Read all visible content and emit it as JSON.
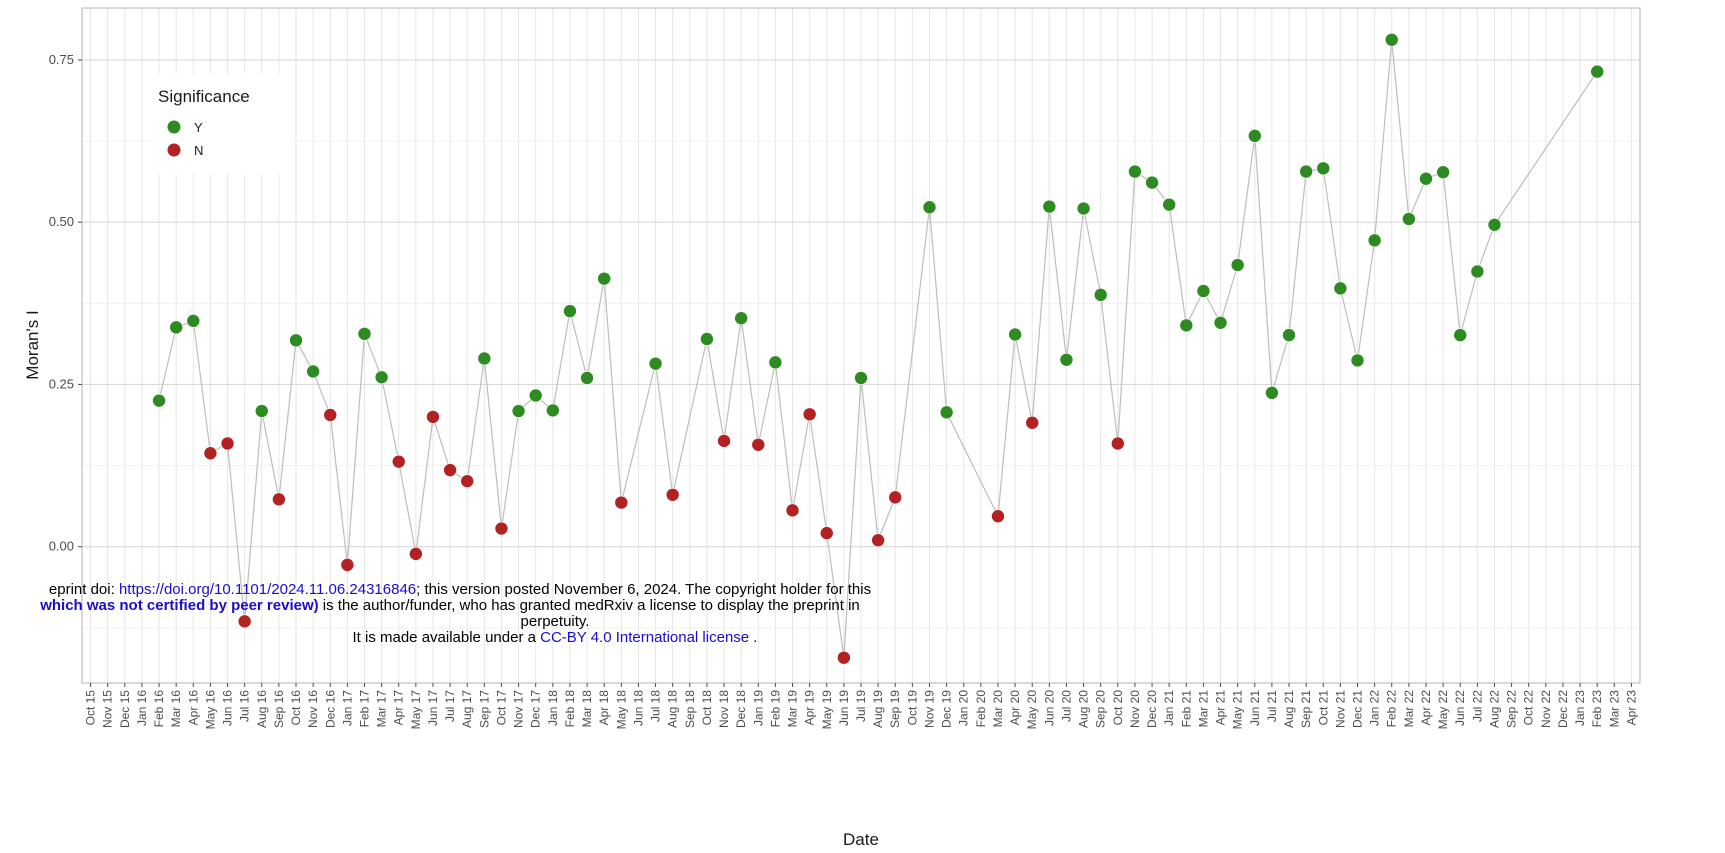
{
  "chart_data": {
    "type": "scatter",
    "title": "",
    "xlabel": "Date",
    "ylabel": "Moran's I",
    "ylim": [
      -0.21,
      0.83
    ],
    "y_ticks": [
      0.0,
      0.25,
      0.5,
      0.75
    ],
    "y_tick_labels": [
      "0.00",
      "0.25",
      "0.50",
      "0.75"
    ],
    "x_tick_labels": [
      "Oct 15",
      "Nov 15",
      "Dec 15",
      "Jan 16",
      "Feb 16",
      "Mar 16",
      "Apr 16",
      "May 16",
      "Jun 16",
      "Jul 16",
      "Aug 16",
      "Sep 16",
      "Oct 16",
      "Nov 16",
      "Dec 16",
      "Jan 17",
      "Feb 17",
      "Mar 17",
      "Apr 17",
      "May 17",
      "Jun 17",
      "Jul 17",
      "Aug 17",
      "Sep 17",
      "Oct 17",
      "Nov 17",
      "Dec 17",
      "Jan 18",
      "Feb 18",
      "Mar 18",
      "Apr 18",
      "May 18",
      "Jun 18",
      "Jul 18",
      "Aug 18",
      "Sep 18",
      "Oct 18",
      "Nov 18",
      "Dec 18",
      "Jan 19",
      "Feb 19",
      "Mar 19",
      "Apr 19",
      "May 19",
      "Jun 19",
      "Jul 19",
      "Aug 19",
      "Sep 19",
      "Oct 19",
      "Nov 19",
      "Dec 19",
      "Jan 20",
      "Feb 20",
      "Mar 20",
      "Apr 20",
      "May 20",
      "Jun 20",
      "Jul 20",
      "Aug 20",
      "Sep 20",
      "Oct 20",
      "Nov 20",
      "Dec 20",
      "Jan 21",
      "Feb 21",
      "Mar 21",
      "Apr 21",
      "May 21",
      "Jun 21",
      "Jul 21",
      "Aug 21",
      "Sep 21",
      "Oct 21",
      "Nov 21",
      "Dec 21",
      "Jan 22",
      "Feb 22",
      "Mar 22",
      "Apr 22",
      "May 22",
      "Jun 22",
      "Jul 22",
      "Aug 22",
      "Sep 22",
      "Oct 22",
      "Nov 22",
      "Dec 22",
      "Jan 23",
      "Feb 23",
      "Mar 23",
      "Apr 23"
    ],
    "grid": true,
    "legend": {
      "title": "Significance",
      "placement": "top-left",
      "entries": [
        {
          "label": "Y",
          "color": "#2e8b22"
        },
        {
          "label": "N",
          "color": "#b22222"
        }
      ]
    },
    "line_color": "#bdbdbd",
    "points": [
      {
        "x": "Feb 16",
        "y": 0.225,
        "sig": "Y"
      },
      {
        "x": "Mar 16",
        "y": 0.338,
        "sig": "Y"
      },
      {
        "x": "Apr 16",
        "y": 0.348,
        "sig": "Y"
      },
      {
        "x": "May 16",
        "y": 0.144,
        "sig": "N"
      },
      {
        "x": "Jun 16",
        "y": 0.159,
        "sig": "N"
      },
      {
        "x": "Jul 16",
        "y": -0.115,
        "sig": "N"
      },
      {
        "x": "Aug 16",
        "y": 0.209,
        "sig": "Y"
      },
      {
        "x": "Sep 16",
        "y": 0.073,
        "sig": "N"
      },
      {
        "x": "Oct 16",
        "y": 0.318,
        "sig": "Y"
      },
      {
        "x": "Nov 16",
        "y": 0.27,
        "sig": "Y"
      },
      {
        "x": "Dec 16",
        "y": 0.203,
        "sig": "N"
      },
      {
        "x": "Jan 17",
        "y": -0.028,
        "sig": "N"
      },
      {
        "x": "Feb 17",
        "y": 0.328,
        "sig": "Y"
      },
      {
        "x": "Mar 17",
        "y": 0.261,
        "sig": "Y"
      },
      {
        "x": "Apr 17",
        "y": 0.131,
        "sig": "N"
      },
      {
        "x": "May 17",
        "y": -0.011,
        "sig": "N"
      },
      {
        "x": "Jun 17",
        "y": 0.2,
        "sig": "N"
      },
      {
        "x": "Jul 17",
        "y": 0.118,
        "sig": "N"
      },
      {
        "x": "Aug 17",
        "y": 0.101,
        "sig": "N"
      },
      {
        "x": "Sep 17",
        "y": 0.29,
        "sig": "Y"
      },
      {
        "x": "Oct 17",
        "y": 0.028,
        "sig": "N"
      },
      {
        "x": "Nov 17",
        "y": 0.209,
        "sig": "Y"
      },
      {
        "x": "Dec 17",
        "y": 0.233,
        "sig": "Y"
      },
      {
        "x": "Jan 18",
        "y": 0.21,
        "sig": "Y"
      },
      {
        "x": "Feb 18",
        "y": 0.363,
        "sig": "Y"
      },
      {
        "x": "Mar 18",
        "y": 0.26,
        "sig": "Y"
      },
      {
        "x": "Apr 18",
        "y": 0.413,
        "sig": "Y"
      },
      {
        "x": "May 18",
        "y": 0.068,
        "sig": "N"
      },
      {
        "x": "Jul 18",
        "y": 0.282,
        "sig": "Y"
      },
      {
        "x": "Aug 18",
        "y": 0.08,
        "sig": "N"
      },
      {
        "x": "Oct 18",
        "y": 0.32,
        "sig": "Y"
      },
      {
        "x": "Nov 18",
        "y": 0.163,
        "sig": "N"
      },
      {
        "x": "Dec 18",
        "y": 0.352,
        "sig": "Y"
      },
      {
        "x": "Jan 19",
        "y": 0.157,
        "sig": "N"
      },
      {
        "x": "Feb 19",
        "y": 0.284,
        "sig": "Y"
      },
      {
        "x": "Mar 19",
        "y": 0.056,
        "sig": "N"
      },
      {
        "x": "Apr 19",
        "y": 0.204,
        "sig": "N"
      },
      {
        "x": "May 19",
        "y": 0.021,
        "sig": "N"
      },
      {
        "x": "Jun 19",
        "y": -0.171,
        "sig": "N"
      },
      {
        "x": "Jul 19",
        "y": 0.26,
        "sig": "Y"
      },
      {
        "x": "Aug 19",
        "y": 0.01,
        "sig": "N"
      },
      {
        "x": "Sep 19",
        "y": 0.076,
        "sig": "N"
      },
      {
        "x": "Nov 19",
        "y": 0.523,
        "sig": "Y"
      },
      {
        "x": "Dec 19",
        "y": 0.207,
        "sig": "Y"
      },
      {
        "x": "Mar 20",
        "y": 0.047,
        "sig": "N"
      },
      {
        "x": "Apr 20",
        "y": 0.327,
        "sig": "Y"
      },
      {
        "x": "May 20",
        "y": 0.191,
        "sig": "N"
      },
      {
        "x": "Jun 20",
        "y": 0.524,
        "sig": "Y"
      },
      {
        "x": "Jul 20",
        "y": 0.288,
        "sig": "Y"
      },
      {
        "x": "Aug 20",
        "y": 0.521,
        "sig": "Y"
      },
      {
        "x": "Sep 20",
        "y": 0.388,
        "sig": "Y"
      },
      {
        "x": "Oct 20",
        "y": 0.159,
        "sig": "N"
      },
      {
        "x": "Nov 20",
        "y": 0.578,
        "sig": "Y"
      },
      {
        "x": "Dec 20",
        "y": 0.561,
        "sig": "Y"
      },
      {
        "x": "Jan 21",
        "y": 0.527,
        "sig": "Y"
      },
      {
        "x": "Feb 21",
        "y": 0.341,
        "sig": "Y"
      },
      {
        "x": "Mar 21",
        "y": 0.394,
        "sig": "Y"
      },
      {
        "x": "Apr 21",
        "y": 0.345,
        "sig": "Y"
      },
      {
        "x": "May 21",
        "y": 0.434,
        "sig": "Y"
      },
      {
        "x": "Jun 21",
        "y": 0.633,
        "sig": "Y"
      },
      {
        "x": "Jul 21",
        "y": 0.237,
        "sig": "Y"
      },
      {
        "x": "Aug 21",
        "y": 0.326,
        "sig": "Y"
      },
      {
        "x": "Sep 21",
        "y": 0.578,
        "sig": "Y"
      },
      {
        "x": "Oct 21",
        "y": 0.583,
        "sig": "Y"
      },
      {
        "x": "Nov 21",
        "y": 0.398,
        "sig": "Y"
      },
      {
        "x": "Dec 21",
        "y": 0.287,
        "sig": "Y"
      },
      {
        "x": "Jan 22",
        "y": 0.472,
        "sig": "Y"
      },
      {
        "x": "Feb 22",
        "y": 0.781,
        "sig": "Y"
      },
      {
        "x": "Mar 22",
        "y": 0.505,
        "sig": "Y"
      },
      {
        "x": "Apr 22",
        "y": 0.567,
        "sig": "Y"
      },
      {
        "x": "May 22",
        "y": 0.577,
        "sig": "Y"
      },
      {
        "x": "Jun 22",
        "y": 0.326,
        "sig": "Y"
      },
      {
        "x": "Jul 22",
        "y": 0.424,
        "sig": "Y"
      },
      {
        "x": "Aug 22",
        "y": 0.496,
        "sig": "Y"
      },
      {
        "x": "Feb 23",
        "y": 0.732,
        "sig": "Y"
      }
    ]
  },
  "watermark": {
    "line1_pre": "eprint doi: ",
    "line1_link": "https://doi.org/10.1101/2024.11.06.24316846",
    "line1_post": "; this version posted November 6, 2024. The copyright holder for this",
    "line2_bold": "which was not certified by peer review)",
    "line2_post": " is the author/funder, who has granted medRxiv a license to display the preprint in",
    "line3": "perpetuity.",
    "line4_pre": "It is made available under a ",
    "line4_link": "CC-BY 4.0 International license",
    "line4_post": " ."
  }
}
